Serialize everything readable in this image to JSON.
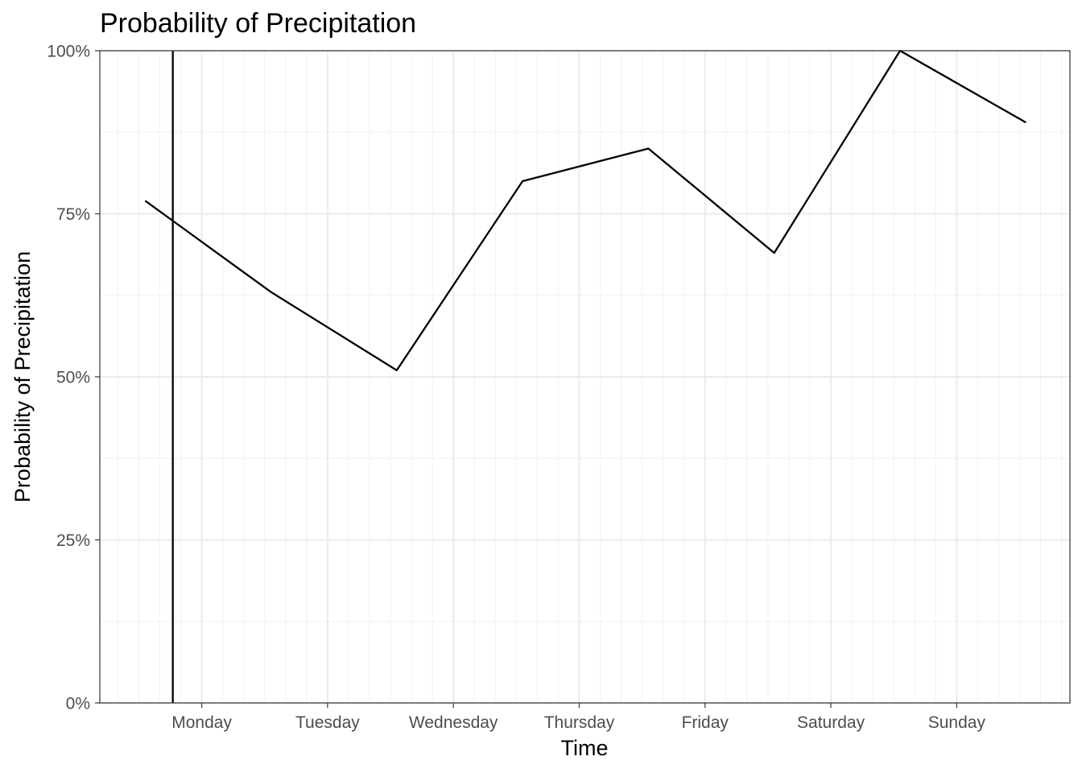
{
  "chart_data": {
    "type": "line",
    "title": "Probability of Precipitation",
    "xlabel": "Time",
    "ylabel": "Probability of Precipitation",
    "x_unit": "days",
    "x_tick_labels": [
      "Monday",
      "Tuesday",
      "Wednesday",
      "Thursday",
      "Friday",
      "Saturday",
      "Sunday"
    ],
    "x_ticks": [
      0,
      1,
      2,
      3,
      4,
      5,
      6
    ],
    "xlim": [
      -0.81,
      6.9
    ],
    "y_tick_labels": [
      "0%",
      "25%",
      "50%",
      "75%",
      "100%"
    ],
    "y_ticks": [
      0,
      0.25,
      0.5,
      0.75,
      1.0
    ],
    "ylim": [
      0,
      1
    ],
    "grid": true,
    "series": [
      {
        "x": [
          -0.45,
          0.55,
          1.55,
          2.55,
          3.55,
          4.55,
          5.55,
          6.55
        ],
        "values": [
          0.77,
          0.63,
          0.51,
          0.8,
          0.85,
          0.69,
          1.0,
          0.89
        ]
      }
    ],
    "vline": {
      "x": -0.23
    },
    "colors": {
      "line": "#000000",
      "grid_major": "#ebebeb",
      "grid_minor": "#f2f2f2",
      "panel_border": "#333333",
      "tick_text": "#4d4d4d"
    }
  }
}
